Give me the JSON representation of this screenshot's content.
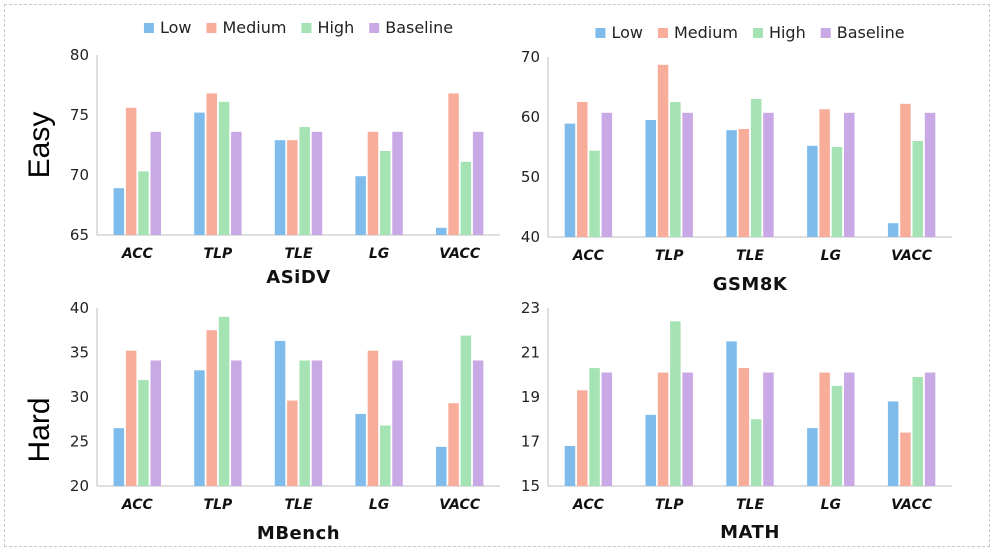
{
  "colors": {
    "Low": "#7fbcec",
    "Medium": "#f8ad9b",
    "High": "#a6e3b4",
    "Baseline": "#c9a8e6"
  },
  "row_labels": [
    "Easy",
    "Hard"
  ],
  "chart_data": [
    {
      "type": "bar",
      "title": "ASiDV",
      "row": "Easy",
      "categories": [
        "ACC",
        "TLP",
        "TLE",
        "LG",
        "VACC"
      ],
      "ylim": [
        65,
        80
      ],
      "yticks": [
        65,
        70,
        75,
        80
      ],
      "legend": [
        "Low",
        "Medium",
        "High",
        "Baseline"
      ],
      "series": [
        {
          "name": "Low",
          "values": [
            68.9,
            75.2,
            72.9,
            69.9,
            65.6
          ]
        },
        {
          "name": "Medium",
          "values": [
            75.6,
            76.8,
            72.9,
            73.6,
            76.8
          ]
        },
        {
          "name": "High",
          "values": [
            70.3,
            76.1,
            74.0,
            72.0,
            71.1
          ]
        },
        {
          "name": "Baseline",
          "values": [
            73.6,
            73.6,
            73.6,
            73.6,
            73.6
          ]
        }
      ]
    },
    {
      "type": "bar",
      "title": "GSM8K",
      "row": "Easy",
      "categories": [
        "ACC",
        "TLP",
        "TLE",
        "LG",
        "VACC"
      ],
      "ylim": [
        40,
        70
      ],
      "yticks": [
        40,
        50,
        60,
        70
      ],
      "legend": [
        "Low",
        "Medium",
        "High",
        "Baseline"
      ],
      "series": [
        {
          "name": "Low",
          "values": [
            58.9,
            59.5,
            57.8,
            55.2,
            42.3
          ]
        },
        {
          "name": "Medium",
          "values": [
            62.5,
            68.7,
            58.0,
            61.3,
            62.2
          ]
        },
        {
          "name": "High",
          "values": [
            54.4,
            62.5,
            63.0,
            55.0,
            56.0
          ]
        },
        {
          "name": "Baseline",
          "values": [
            60.7,
            60.7,
            60.7,
            60.7,
            60.7
          ]
        }
      ]
    },
    {
      "type": "bar",
      "title": "MBench",
      "row": "Hard",
      "categories": [
        "ACC",
        "TLP",
        "TLE",
        "LG",
        "VACC"
      ],
      "ylim": [
        20,
        40
      ],
      "yticks": [
        20,
        25,
        30,
        35,
        40
      ],
      "series": [
        {
          "name": "Low",
          "values": [
            26.5,
            33.0,
            36.3,
            28.1,
            24.4
          ]
        },
        {
          "name": "Medium",
          "values": [
            35.2,
            37.5,
            29.6,
            35.2,
            29.3
          ]
        },
        {
          "name": "High",
          "values": [
            31.9,
            39.0,
            34.1,
            26.8,
            36.9
          ]
        },
        {
          "name": "Baseline",
          "values": [
            34.1,
            34.1,
            34.1,
            34.1,
            34.1
          ]
        }
      ]
    },
    {
      "type": "bar",
      "title": "MATH",
      "row": "Hard",
      "categories": [
        "ACC",
        "TLP",
        "TLE",
        "LG",
        "VACC"
      ],
      "ylim": [
        15,
        23
      ],
      "yticks": [
        15,
        17,
        19,
        21,
        23
      ],
      "series": [
        {
          "name": "Low",
          "values": [
            16.8,
            18.2,
            21.5,
            17.6,
            18.8
          ]
        },
        {
          "name": "Medium",
          "values": [
            19.3,
            20.1,
            20.3,
            20.1,
            17.4
          ]
        },
        {
          "name": "High",
          "values": [
            20.3,
            22.4,
            18.0,
            19.5,
            19.9
          ]
        },
        {
          "name": "Baseline",
          "values": [
            20.1,
            20.1,
            20.1,
            20.1,
            20.1
          ]
        }
      ]
    }
  ]
}
